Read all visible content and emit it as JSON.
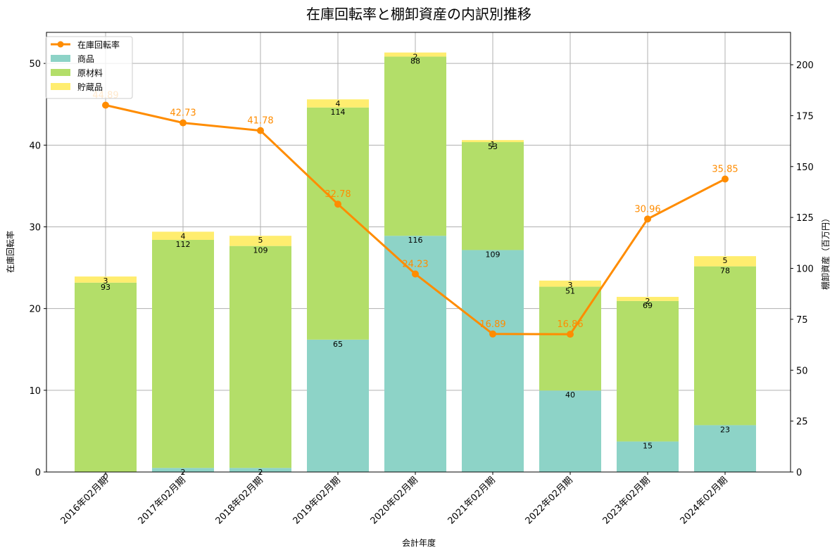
{
  "chart_data": {
    "type": "bar+line",
    "title": "在庫回転率と棚卸資産の内訳別推移",
    "xlabel": "会計年度",
    "ylabel_left": "在庫回転率",
    "ylabel_right": "棚卸資産（百万円）",
    "ylim_left": [
      0,
      53.8
    ],
    "ylim_right": [
      0,
      215.9
    ],
    "yticks_left": [
      0,
      10,
      20,
      30,
      40,
      50
    ],
    "yticks_right": [
      0,
      25,
      50,
      75,
      100,
      125,
      150,
      175,
      200
    ],
    "grid": true,
    "legend_position": "upper left",
    "categories": [
      "2016年02月期",
      "2017年02月期",
      "2018年02月期",
      "2019年02月期",
      "2020年02月期",
      "2021年02月期",
      "2022年02月期",
      "2023年02月期",
      "2024年02月期"
    ],
    "series": [
      {
        "name": "在庫回転率",
        "type": "line",
        "axis": "left",
        "color": "#ff8c00",
        "values": [
          44.89,
          42.73,
          41.78,
          32.78,
          24.23,
          16.89,
          16.86,
          30.96,
          35.85
        ]
      },
      {
        "name": "商品",
        "type": "stacked-bar",
        "axis": "right",
        "color": "#8dd3c7",
        "values": [
          0,
          2,
          2,
          65,
          116,
          109,
          40,
          15,
          23
        ]
      },
      {
        "name": "原材料",
        "type": "stacked-bar",
        "axis": "right",
        "color": "#b3de69",
        "values": [
          93,
          112,
          109,
          114,
          88,
          53,
          51,
          69,
          78
        ]
      },
      {
        "name": "貯蔵品",
        "type": "stacked-bar",
        "axis": "right",
        "color": "#ffed6f",
        "values": [
          3,
          4,
          5,
          4,
          2,
          1,
          3,
          2,
          5
        ]
      }
    ]
  }
}
